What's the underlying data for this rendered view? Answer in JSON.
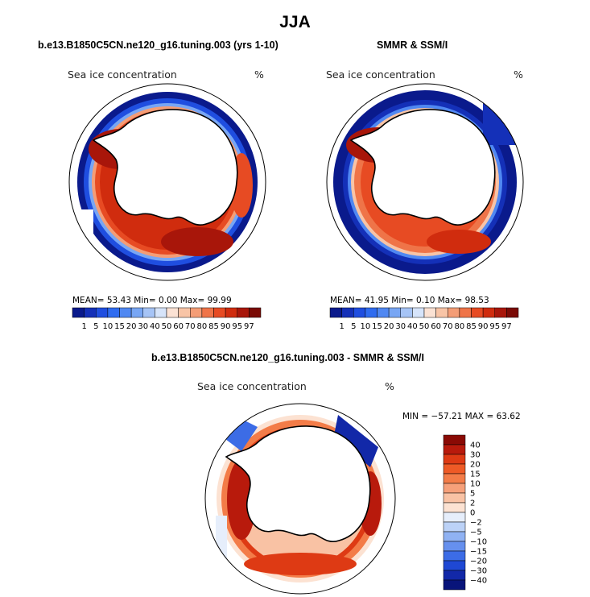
{
  "figure_title": "JJA",
  "panels": {
    "model": {
      "title": "b.e13.B1850C5CN.ne120_g16.tuning.003 (yrs 1-10)",
      "subtitle_left": "Sea ice concentration",
      "subtitle_right": "%",
      "stats": "MEAN=   53.43   Min=    0.00   Max=   99.99"
    },
    "obs": {
      "title": "SMMR & SSM/I",
      "subtitle_left": "Sea ice concentration",
      "subtitle_right": "%",
      "stats": "MEAN=   41.95   Min=    0.10   Max=   98.53"
    },
    "diff": {
      "title": "b.e13.B1850C5CN.ne120_g16.tuning.003 - SMMR & SSM/I",
      "subtitle_left": "Sea ice concentration",
      "subtitle_right": "%",
      "stats": "MIN = −57.21  MAX =   63.62"
    }
  },
  "chart_data": [
    {
      "type": "heatmap",
      "panel": "model",
      "projection": "south polar stereographic",
      "colorbar": {
        "orientation": "horizontal",
        "labels": [
          "1",
          "5",
          "10",
          "15",
          "20",
          "30",
          "40",
          "50",
          "60",
          "70",
          "80",
          "85",
          "90",
          "95",
          "97"
        ],
        "colors": [
          "#0a1a8c",
          "#1430b8",
          "#1f4ee0",
          "#2f6cf0",
          "#5088f2",
          "#78a6f4",
          "#a6c4f6",
          "#d6e4fa",
          "#fbe2d4",
          "#f8c4a6",
          "#f49d76",
          "#ef7448",
          "#e74b23",
          "#d02c0e",
          "#a8160a",
          "#7a0a05"
        ]
      },
      "mean": 53.43,
      "min": 0.0,
      "max": 99.99
    },
    {
      "type": "heatmap",
      "panel": "obs",
      "projection": "south polar stereographic",
      "colorbar": {
        "orientation": "horizontal",
        "labels": [
          "1",
          "5",
          "10",
          "15",
          "20",
          "30",
          "40",
          "50",
          "60",
          "70",
          "80",
          "85",
          "90",
          "95",
          "97"
        ],
        "colors": [
          "#0a1a8c",
          "#1430b8",
          "#1f4ee0",
          "#2f6cf0",
          "#5088f2",
          "#78a6f4",
          "#a6c4f6",
          "#d6e4fa",
          "#fbe2d4",
          "#f8c4a6",
          "#f49d76",
          "#ef7448",
          "#e74b23",
          "#d02c0e",
          "#a8160a",
          "#7a0a05"
        ]
      },
      "mean": 41.95,
      "min": 0.1,
      "max": 98.53
    },
    {
      "type": "heatmap",
      "panel": "diff",
      "projection": "south polar stereographic",
      "colorbar": {
        "orientation": "vertical",
        "labels": [
          "40",
          "30",
          "20",
          "15",
          "10",
          "5",
          "2",
          "0",
          "−2",
          "−5",
          "−10",
          "−15",
          "−20",
          "−30",
          "−40"
        ],
        "colors": [
          "#8a0a05",
          "#b81a0c",
          "#de3a14",
          "#ee5a26",
          "#f37c48",
          "#f6a07a",
          "#f9c2a4",
          "#fce2d2",
          "#e6eefb",
          "#bcd2f7",
          "#90b2f3",
          "#6690ee",
          "#3c6ce6",
          "#1f48d4",
          "#1228a8",
          "#08147a"
        ]
      },
      "min": -57.21,
      "max": 63.62
    }
  ]
}
